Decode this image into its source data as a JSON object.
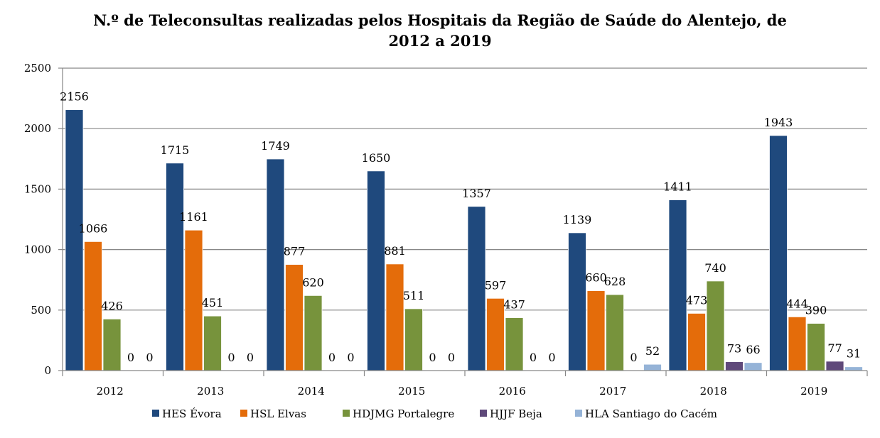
{
  "chart_data": {
    "type": "bar",
    "title_line1": "N.º de Teleconsultas realizadas pelos Hospitais da Região de Saúde do Alentejo, de",
    "title_line2": "2012 a 2019",
    "categories": [
      "2012",
      "2013",
      "2014",
      "2015",
      "2016",
      "2017",
      "2018",
      "2019"
    ],
    "ylim": [
      0,
      2500
    ],
    "yticks": [
      0,
      500,
      1000,
      1500,
      2000,
      2500
    ],
    "grid": true,
    "legend_position": "bottom",
    "series": [
      {
        "name": "HES Évora",
        "color": "#1F497D",
        "values": [
          2156,
          1715,
          1749,
          1650,
          1357,
          1139,
          1411,
          1943
        ]
      },
      {
        "name": "HSL Elvas",
        "color": "#E46C0A",
        "values": [
          1066,
          1161,
          877,
          881,
          597,
          660,
          473,
          444
        ]
      },
      {
        "name": "HDJMG Portalegre",
        "color": "#77933C",
        "values": [
          426,
          451,
          620,
          511,
          437,
          628,
          740,
          390
        ]
      },
      {
        "name": "HJJF Beja",
        "color": "#5F497A",
        "values": [
          0,
          0,
          0,
          0,
          0,
          0,
          73,
          77
        ]
      },
      {
        "name": "HLA Santiago do Cacém",
        "color": "#95B3D7",
        "values": [
          0,
          0,
          0,
          0,
          0,
          52,
          66,
          31
        ]
      }
    ]
  }
}
